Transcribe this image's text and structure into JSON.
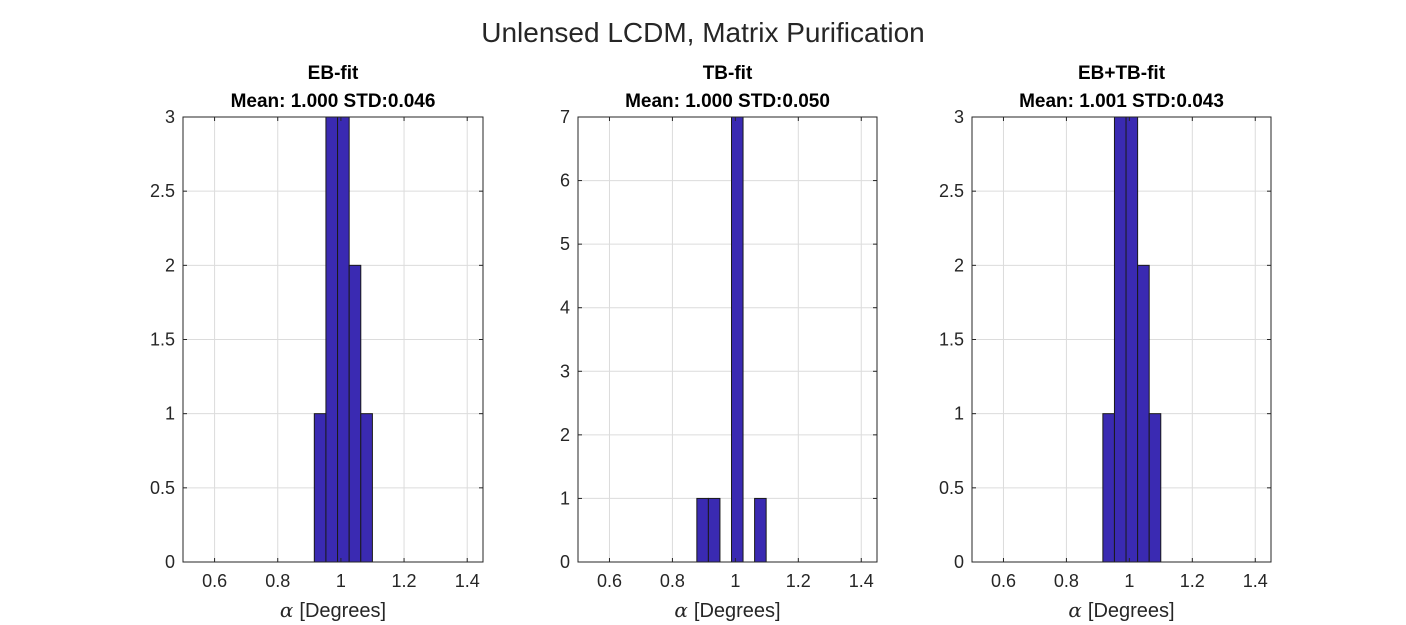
{
  "figure": {
    "suptitle": "Unlensed LCDM, Matrix Purification",
    "bar_color": "#3a2ab2"
  },
  "chart_data": [
    {
      "type": "bar",
      "title": "EB-fit",
      "subtitle": "Mean: 1.000 STD:0.046",
      "xlabel_symbol": "α",
      "xlabel": "[Degrees]",
      "ylabel": "",
      "xlim": [
        0.5,
        1.45
      ],
      "ylim": [
        0,
        3
      ],
      "xticks": [
        "0.6",
        "0.8",
        "1",
        "1.2",
        "1.4"
      ],
      "xtick_values": [
        0.6,
        0.8,
        1.0,
        1.2,
        1.4
      ],
      "yticks": [
        "0",
        "0.5",
        "1",
        "1.5",
        "2",
        "2.5",
        "3"
      ],
      "ytick_values": [
        0,
        0.5,
        1,
        1.5,
        2,
        2.5,
        3
      ],
      "grid": true,
      "bin_edges": [
        0.9158,
        0.9526,
        0.9894,
        1.0262,
        1.063,
        1.0998
      ],
      "values": [
        1,
        3,
        3,
        2,
        1
      ]
    },
    {
      "type": "bar",
      "title": "TB-fit",
      "subtitle": "Mean: 1.000 STD:0.050",
      "xlabel_symbol": "α",
      "xlabel": "[Degrees]",
      "ylabel": "",
      "xlim": [
        0.5,
        1.45
      ],
      "ylim": [
        0,
        7
      ],
      "xticks": [
        "0.6",
        "0.8",
        "1",
        "1.2",
        "1.4"
      ],
      "xtick_values": [
        0.6,
        0.8,
        1.0,
        1.2,
        1.4
      ],
      "yticks": [
        "0",
        "1",
        "2",
        "3",
        "4",
        "5",
        "6",
        "7"
      ],
      "ytick_values": [
        0,
        1,
        2,
        3,
        4,
        5,
        6,
        7
      ],
      "grid": true,
      "bin_edges": [
        0.8776,
        0.9143,
        0.951,
        0.9877,
        1.0244,
        1.0611,
        1.0978
      ],
      "values": [
        1,
        1,
        0,
        7,
        0,
        1
      ]
    },
    {
      "type": "bar",
      "title": "EB+TB-fit",
      "subtitle": "Mean: 1.001 STD:0.043",
      "xlabel_symbol": "α",
      "xlabel": "[Degrees]",
      "ylabel": "",
      "xlim": [
        0.5,
        1.45
      ],
      "ylim": [
        0,
        3
      ],
      "xticks": [
        "0.6",
        "0.8",
        "1",
        "1.2",
        "1.4"
      ],
      "xtick_values": [
        0.6,
        0.8,
        1.0,
        1.2,
        1.4
      ],
      "yticks": [
        "0",
        "0.5",
        "1",
        "1.5",
        "2",
        "2.5",
        "3"
      ],
      "ytick_values": [
        0,
        0.5,
        1,
        1.5,
        2,
        2.5,
        3
      ],
      "grid": true,
      "bin_edges": [
        0.9158,
        0.9526,
        0.9894,
        1.0262,
        1.063,
        1.0998
      ],
      "values": [
        1,
        3,
        3,
        2,
        1
      ]
    }
  ]
}
